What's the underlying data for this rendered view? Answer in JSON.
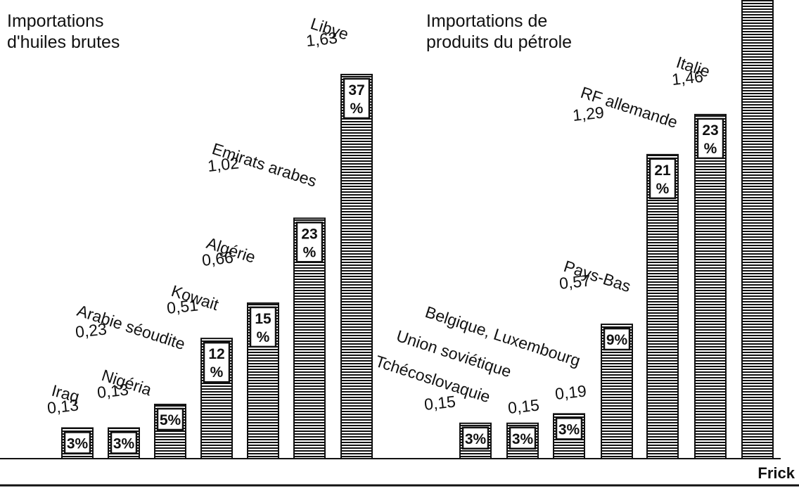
{
  "chart_data": {
    "type": "bar",
    "groups": [
      {
        "title_lines": [
          "Importations",
          "d'huiles brutes"
        ],
        "bars": [
          {
            "name_lines": [
              "Iraq"
            ],
            "value_label": "0,13",
            "value": 0.13,
            "pct_lines": [
              "3%"
            ]
          },
          {
            "name_lines": [
              "Nigéria"
            ],
            "value_label": "0,13",
            "value": 0.13,
            "pct_lines": [
              "3%"
            ]
          },
          {
            "name_lines": [
              "Arabie séoudite"
            ],
            "value_label": "0,23",
            "value": 0.23,
            "pct_lines": [
              "5%"
            ]
          },
          {
            "name_lines": [
              "Kowait"
            ],
            "value_label": "0,51",
            "value": 0.51,
            "pct_lines": [
              "12",
              "%"
            ]
          },
          {
            "name_lines": [
              "Algérie"
            ],
            "value_label": "0,66",
            "value": 0.66,
            "pct_lines": [
              "15",
              "%"
            ]
          },
          {
            "name_lines": [
              "Emirats arabes"
            ],
            "value_label": "1,02",
            "value": 1.02,
            "pct_lines": [
              "23",
              "%"
            ]
          },
          {
            "name_lines": [
              "Libye"
            ],
            "value_label": "1,63",
            "value": 1.63,
            "pct_lines": [
              "37",
              "%"
            ]
          }
        ]
      },
      {
        "title_lines": [
          "Importations de",
          "produits du pétrole"
        ],
        "bars": [
          {
            "name_lines": [
              "Tchécoslovaquie"
            ],
            "value_label": "0,15",
            "value": 0.15,
            "pct_lines": [
              "3%"
            ]
          },
          {
            "name_lines": [
              "Union soviétique"
            ],
            "value_label": "0,15",
            "value": 0.15,
            "pct_lines": [
              "3%"
            ]
          },
          {
            "name_lines": [
              "Belgique, Luxembourg"
            ],
            "value_label": "0,19",
            "value": 0.19,
            "pct_lines": [
              "3%"
            ]
          },
          {
            "name_lines": [
              "Pays-Bas"
            ],
            "value_label": "0,57",
            "value": 0.57,
            "pct_lines": [
              "9%"
            ]
          },
          {
            "name_lines": [
              "RF allemande"
            ],
            "value_label": "1,29",
            "value": 1.29,
            "pct_lines": [
              "21",
              "%"
            ]
          },
          {
            "name_lines": [
              "Italie"
            ],
            "value_label": "1,46",
            "value": 1.46,
            "pct_lines": [
              "23",
              "%"
            ]
          },
          {
            "name_lines": [],
            "value_label": "",
            "value": 3.0,
            "pct_lines": []
          }
        ]
      }
    ]
  },
  "credit": "Frick",
  "colors": {
    "ink": "#111111",
    "paper": "#ffffff"
  }
}
